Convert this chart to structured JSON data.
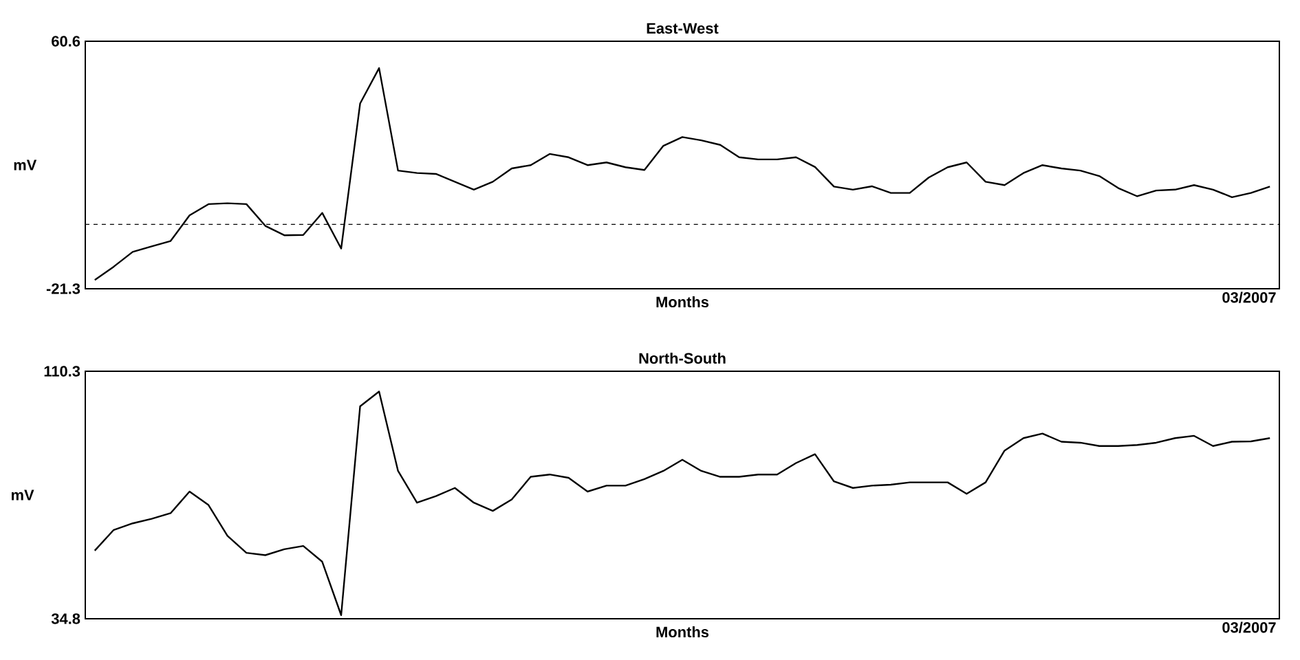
{
  "chart_data": [
    {
      "type": "line",
      "title": "East-West",
      "xlabel": "Months",
      "ylabel": "mV",
      "annotations": [
        "03/2007"
      ],
      "categories": [
        null,
        null,
        null,
        null,
        null,
        null,
        null,
        null,
        null,
        null,
        null,
        null,
        null,
        null,
        null,
        null,
        null,
        null,
        null,
        null,
        null,
        null,
        null,
        null,
        null,
        null,
        null,
        null,
        null,
        null,
        null,
        null,
        null,
        null,
        null,
        null,
        null,
        null,
        null,
        null,
        null,
        null,
        null,
        null,
        null,
        null,
        null,
        null,
        null,
        null,
        null,
        null,
        null,
        null,
        null,
        null,
        null,
        null,
        null,
        null,
        null,
        null,
        null
      ],
      "series": [
        {
          "color": "#000000",
          "values": [
            -18.4,
            -14.0,
            -9.1,
            -7.3,
            -5.5,
            3.0,
            6.7,
            7.0,
            6.7,
            -0.5,
            -3.6,
            -3.5,
            3.8,
            -8.0,
            40.0,
            51.7,
            17.8,
            17.0,
            16.7,
            14.1,
            11.5,
            14.1,
            18.5,
            19.6,
            23.3,
            22.2,
            19.6,
            20.5,
            18.9,
            18.0,
            26.0,
            28.9,
            27.8,
            26.3,
            22.2,
            21.5,
            21.5,
            22.2,
            19.0,
            12.5,
            11.5,
            12.6,
            10.4,
            10.4,
            15.5,
            18.9,
            20.5,
            14.1,
            13.0,
            17.0,
            19.6,
            18.5,
            17.8,
            16.0,
            12.0,
            9.3,
            11.2,
            11.5,
            13.0,
            11.5,
            9.0,
            10.4,
            12.5
          ]
        }
      ],
      "ylim": [
        -21.3,
        60.6
      ],
      "yticks": [
        {
          "value": -21.3,
          "label": "-21.3"
        },
        {
          "value": 60.6,
          "label": "60.6"
        }
      ],
      "ref_lines": [
        {
          "axis": "y",
          "value": 0,
          "line_style": "dashed"
        }
      ]
    },
    {
      "type": "line",
      "title": "North-South",
      "xlabel": "Months",
      "ylabel": "mV",
      "annotations": [
        "03/2007"
      ],
      "categories": [
        null,
        null,
        null,
        null,
        null,
        null,
        null,
        null,
        null,
        null,
        null,
        null,
        null,
        null,
        null,
        null,
        null,
        null,
        null,
        null,
        null,
        null,
        null,
        null,
        null,
        null,
        null,
        null,
        null,
        null,
        null,
        null,
        null,
        null,
        null,
        null,
        null,
        null,
        null,
        null,
        null,
        null,
        null,
        null,
        null,
        null,
        null,
        null,
        null,
        null,
        null,
        null,
        null,
        null,
        null,
        null,
        null,
        null,
        null,
        null,
        null,
        null,
        null
      ],
      "series": [
        {
          "color": "#000000",
          "values": [
            55.6,
            61.9,
            63.9,
            65.3,
            67.0,
            73.6,
            69.5,
            60.1,
            54.9,
            54.2,
            56.0,
            57.0,
            52.2,
            35.9,
            99.6,
            104.1,
            79.9,
            70.2,
            72.2,
            74.7,
            70.2,
            67.7,
            71.2,
            78.1,
            78.8,
            77.8,
            73.6,
            75.4,
            75.4,
            77.4,
            79.9,
            83.3,
            79.9,
            78.1,
            78.1,
            78.8,
            78.8,
            82.3,
            85.0,
            76.7,
            74.7,
            75.4,
            75.7,
            76.4,
            76.4,
            76.4,
            72.9,
            76.4,
            86.1,
            89.9,
            91.3,
            88.8,
            88.5,
            87.5,
            87.5,
            87.8,
            88.5,
            89.9,
            90.6,
            87.5,
            88.8,
            88.9,
            89.9
          ]
        }
      ],
      "ylim": [
        34.8,
        110.3
      ],
      "yticks": [
        {
          "value": 34.8,
          "label": "34.8"
        },
        {
          "value": 110.3,
          "label": "110.3"
        }
      ]
    }
  ]
}
